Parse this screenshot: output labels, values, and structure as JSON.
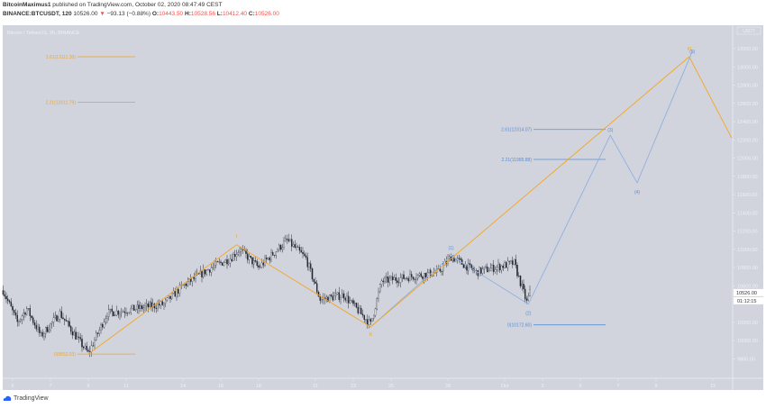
{
  "header": {
    "author": "BitcoinMaximus1",
    "published": "published on TradingView.com, October 02, 2020 08:47:49 CEST",
    "symbol": "BINANCE:BTCUSDT, 120",
    "last": "10526.00",
    "change": "−93.13 (−0.88%)",
    "o_label": "O:",
    "o": "10443.50",
    "h_label": "H:",
    "h": "10528.56",
    "l_label": "L:",
    "l": "10412.40",
    "c_label": "C:",
    "c": "10526.00"
  },
  "footer": {
    "brand": "TradingView"
  },
  "colors": {
    "pane": "#d1d4dc",
    "orange": "#f5a623",
    "blue": "#5b8ed6",
    "down": "#ef5350"
  },
  "chart_data": {
    "type": "candlestick",
    "title": "Bitcoin / TetherUS, 2h, BINANCE",
    "currency": "USDT",
    "grid": false,
    "ylim": [
      9700,
      13400
    ],
    "y_ticks": [
      "13200.00",
      "13000.00",
      "12800.00",
      "12600.00",
      "12400.00",
      "12200.00",
      "12000.00",
      "11800.00",
      "11600.00",
      "11400.00",
      "11200.00",
      "11000.00",
      "10800.00",
      "10600.00",
      "10200.00",
      "10000.00",
      "9800.00"
    ],
    "x_ticks": [
      {
        "label": "5",
        "date": "2020-09-05"
      },
      {
        "label": "7",
        "date": "2020-09-07"
      },
      {
        "label": "9",
        "date": "2020-09-09"
      },
      {
        "label": "11",
        "date": "2020-09-11"
      },
      {
        "label": "14",
        "date": "2020-09-14"
      },
      {
        "label": "16",
        "date": "2020-09-16"
      },
      {
        "label": "18",
        "date": "2020-09-18"
      },
      {
        "label": "21",
        "date": "2020-09-21"
      },
      {
        "label": "23",
        "date": "2020-09-23"
      },
      {
        "label": "25",
        "date": "2020-09-25"
      },
      {
        "label": "28",
        "date": "2020-09-28"
      },
      {
        "label": "Oct",
        "date": "2020-10-01"
      },
      {
        "label": "3",
        "date": "2020-10-03"
      },
      {
        "label": "5",
        "date": "2020-10-05"
      },
      {
        "label": "7",
        "date": "2020-10-07"
      },
      {
        "label": "9",
        "date": "2020-10-09"
      },
      {
        "label": "12",
        "date": "2020-10-12"
      }
    ],
    "last_price_label": "10526.00",
    "countdown_label": "01:12:15",
    "price_path": [
      [
        "2020-09-04T12:00",
        10550
      ],
      [
        "2020-09-05T06:00",
        10200
      ],
      [
        "2020-09-05T18:00",
        10350
      ],
      [
        "2020-09-06T12:00",
        10050
      ],
      [
        "2020-09-07T12:00",
        10300
      ],
      [
        "2020-09-08T12:00",
        10000
      ],
      [
        "2020-09-09T00:00",
        9860
      ],
      [
        "2020-09-10T00:00",
        10300
      ],
      [
        "2020-09-11T12:00",
        10350
      ],
      [
        "2020-09-13T00:00",
        10400
      ],
      [
        "2020-09-14T00:00",
        10600
      ],
      [
        "2020-09-15T12:00",
        10800
      ],
      [
        "2020-09-16T12:00",
        10900
      ],
      [
        "2020-09-17T00:00",
        11000
      ],
      [
        "2020-09-18T00:00",
        10800
      ],
      [
        "2020-09-19T12:00",
        11100
      ],
      [
        "2020-09-20T12:00",
        10900
      ],
      [
        "2020-09-21T06:00",
        10450
      ],
      [
        "2020-09-22T12:00",
        10500
      ],
      [
        "2020-09-23T22:00",
        10180
      ],
      [
        "2020-09-24T12:00",
        10650
      ],
      [
        "2020-09-26T00:00",
        10700
      ],
      [
        "2020-09-27T12:00",
        10750
      ],
      [
        "2020-09-28T04:00",
        10920
      ],
      [
        "2020-09-29T12:00",
        10750
      ],
      [
        "2020-10-01T12:00",
        10850
      ],
      [
        "2020-10-02T04:00",
        10420
      ],
      [
        "2020-10-02T08:00",
        10526
      ]
    ],
    "orange_wave": {
      "labels": [
        "I",
        "II",
        "III"
      ],
      "points": [
        [
          "2020-09-09T00:00",
          9852
        ],
        [
          "2020-09-16T20:00",
          11050
        ],
        [
          "2020-09-23T22:00",
          10150
        ],
        [
          "2020-10-10T18:00",
          13111
        ],
        [
          "2020-10-13T00:00",
          12220
        ]
      ]
    },
    "blue_wave": {
      "labels": [
        "(1)",
        "(2)",
        "(3)",
        "(4)",
        "(5)"
      ],
      "points": [
        [
          "2020-09-23T22:00",
          10150
        ],
        [
          "2020-09-28T04:00",
          10930
        ],
        [
          "2020-10-02T06:00",
          10400
        ],
        [
          "2020-10-06T14:00",
          12250
        ],
        [
          "2020-10-08T00:00",
          11730
        ],
        [
          "2020-10-10T22:00",
          13170
        ]
      ]
    },
    "fib_orange": [
      {
        "label": "2.61(13111.30)",
        "price": 13111.3
      },
      {
        "label": "2.21(12611.79)",
        "price": 12611.79
      },
      {
        "label": "0(9852.03)",
        "price": 9852.03
      }
    ],
    "fib_blue": [
      {
        "label": "2.61(12314.07)",
        "price": 12314.07
      },
      {
        "label": "2.21(11985.88)",
        "price": 11985.88
      },
      {
        "label": "0(10172.60)",
        "price": 10172.6
      }
    ]
  }
}
